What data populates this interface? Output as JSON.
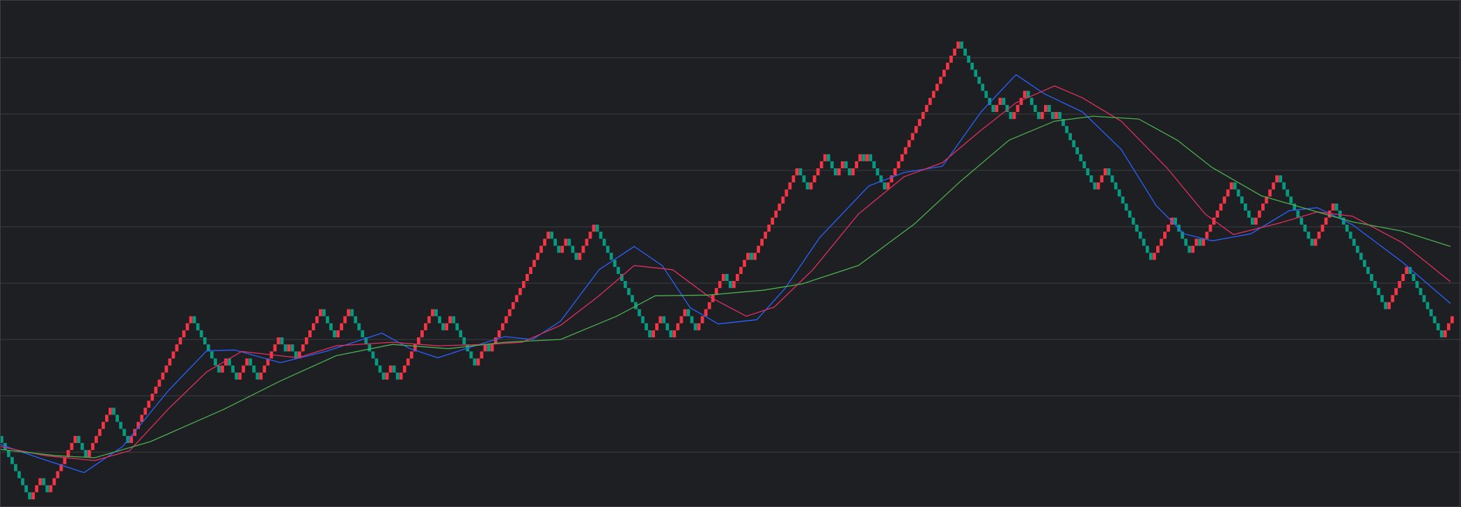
{
  "chart_data": {
    "type": "renko",
    "values": [
      9,
      0,
      3,
      1,
      9,
      6,
      13,
      8,
      26,
      21,
      18,
      20,
      17,
      20,
      17,
      23,
      21,
      22,
      20,
      27,
      23,
      27,
      17,
      19,
      17,
      27,
      24,
      26,
      19,
      22,
      21,
      38,
      35,
      37,
      34,
      39,
      23,
      26,
      23,
      27,
      24,
      32,
      30,
      35,
      34,
      47,
      44,
      49,
      46,
      48,
      46,
      49,
      48,
      49,
      44,
      65,
      59,
      55,
      57,
      54,
      58,
      54,
      56,
      54,
      55,
      44,
      47,
      34,
      40,
      35,
      37,
      36,
      45,
      39,
      46,
      36,
      42,
      27,
      33,
      23,
      26
    ],
    "up_color": "#f23645",
    "down_color": "#089981",
    "xlim": [
      0,
      417
    ],
    "ylim": [
      -1.09,
      70.9
    ],
    "yticks": [
      6.7,
      14.7,
      22.7,
      30.7,
      38.7,
      46.7,
      54.7,
      62.7
    ],
    "grid": true,
    "series": [
      {
        "color": "#2962ff",
        "x": [
          0,
          11,
          24,
          35,
          48,
          59,
          67,
          80,
          93,
          109,
          117,
          125,
          133,
          144,
          152,
          160,
          171,
          181,
          189,
          197,
          205,
          216,
          224,
          234,
          248,
          258,
          269,
          280,
          290,
          298,
          309,
          320,
          330,
          338,
          346,
          357,
          368,
          376,
          386,
          400,
          414
        ],
        "values": [
          7.8,
          5.9,
          3.8,
          7.5,
          15.4,
          21.1,
          21.2,
          19.4,
          21.0,
          23.6,
          21.4,
          20.1,
          21.4,
          23.1,
          22.7,
          25.3,
          32.6,
          35.9,
          33.2,
          27.2,
          24.9,
          25.5,
          29.9,
          37.2,
          44.5,
          46.4,
          47.3,
          55.0,
          60.3,
          57.6,
          55.0,
          49.7,
          41.7,
          37.7,
          36.7,
          37.7,
          41.0,
          41.4,
          39.0,
          33.8,
          27.8
        ]
      },
      {
        "color": "#e0305c",
        "x": [
          0,
          13,
          27,
          37,
          48,
          59,
          69,
          85,
          96,
          112,
          125,
          139,
          149,
          160,
          171,
          181,
          192,
          202,
          213,
          221,
          232,
          245,
          258,
          269,
          280,
          290,
          301,
          309,
          320,
          333,
          344,
          352,
          365,
          376,
          386,
          400,
          414
        ],
        "values": [
          7.5,
          6.2,
          5.5,
          6.9,
          12.8,
          18.1,
          21.0,
          20.1,
          21.8,
          22.3,
          21.8,
          22.0,
          22.3,
          24.7,
          28.9,
          33.2,
          32.6,
          28.9,
          26.0,
          27.3,
          32.6,
          40.5,
          45.8,
          47.8,
          52.4,
          56.3,
          58.7,
          57.0,
          53.7,
          47.1,
          40.5,
          37.6,
          39.2,
          40.8,
          40.2,
          36.5,
          30.9
        ]
      },
      {
        "color": "#4caf50",
        "x": [
          0,
          16,
          27,
          43,
          64,
          80,
          96,
          112,
          128,
          144,
          160,
          176,
          187,
          202,
          218,
          229,
          245,
          261,
          274,
          288,
          301,
          312,
          325,
          336,
          346,
          360,
          376,
          386,
          400,
          414
        ],
        "values": [
          7.1,
          6.2,
          5.9,
          8.2,
          12.8,
          16.8,
          20.4,
          22.0,
          21.4,
          22.3,
          22.7,
          26.0,
          28.9,
          29.0,
          29.7,
          30.6,
          33.2,
          39.1,
          45.1,
          51.0,
          53.7,
          54.4,
          54.0,
          51.0,
          47.1,
          43.1,
          40.8,
          39.4,
          38.1,
          35.9
        ]
      }
    ]
  }
}
